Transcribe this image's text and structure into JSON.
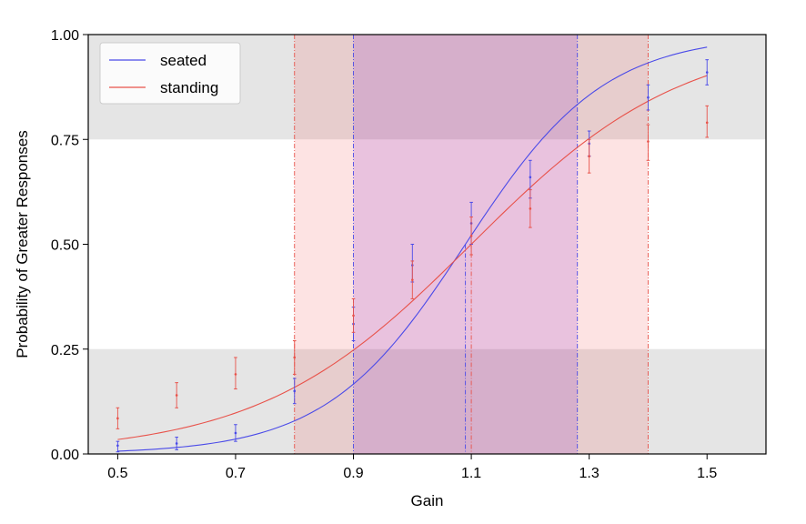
{
  "chart_data": {
    "type": "line",
    "xlabel": "Gain",
    "ylabel": "Probability of Greater Responses",
    "xlim": [
      0.45,
      1.6
    ],
    "ylim": [
      0.0,
      1.0
    ],
    "x_ticks": [
      "0.5",
      "0.7",
      "0.9",
      "1.1",
      "1.3",
      "1.5"
    ],
    "y_ticks": [
      "0.00",
      "0.25",
      "0.50",
      "0.75",
      "1.00"
    ],
    "legend_position": "top-left",
    "grey_bands": [
      [
        0.0,
        0.25
      ],
      [
        0.75,
        1.0
      ]
    ],
    "series": [
      {
        "name": "seated",
        "color": "#4a4ae8",
        "curve": {
          "pse": 1.09,
          "scale": 0.118
        },
        "points": [
          {
            "x": 0.5,
            "y": 0.02,
            "lo": 0.005,
            "hi": 0.03
          },
          {
            "x": 0.6,
            "y": 0.025,
            "lo": 0.01,
            "hi": 0.04
          },
          {
            "x": 0.7,
            "y": 0.05,
            "lo": 0.03,
            "hi": 0.07
          },
          {
            "x": 0.8,
            "y": 0.15,
            "lo": 0.12,
            "hi": 0.18
          },
          {
            "x": 0.9,
            "y": 0.31,
            "lo": 0.27,
            "hi": 0.35
          },
          {
            "x": 1.0,
            "y": 0.45,
            "lo": 0.41,
            "hi": 0.5
          },
          {
            "x": 1.1,
            "y": 0.55,
            "lo": 0.5,
            "hi": 0.6
          },
          {
            "x": 1.2,
            "y": 0.66,
            "lo": 0.61,
            "hi": 0.7
          },
          {
            "x": 1.3,
            "y": 0.74,
            "lo": 0.71,
            "hi": 0.77
          },
          {
            "x": 1.4,
            "y": 0.85,
            "lo": 0.82,
            "hi": 0.88
          },
          {
            "x": 1.5,
            "y": 0.91,
            "lo": 0.88,
            "hi": 0.94
          }
        ],
        "band": {
          "lower": 0.9,
          "pse": 1.09,
          "upper": 1.28
        }
      },
      {
        "name": "standing",
        "color": "#e8524a",
        "curve": {
          "pse": 1.1,
          "scale": 0.18
        },
        "points": [
          {
            "x": 0.5,
            "y": 0.085,
            "lo": 0.06,
            "hi": 0.11
          },
          {
            "x": 0.6,
            "y": 0.14,
            "lo": 0.11,
            "hi": 0.17
          },
          {
            "x": 0.7,
            "y": 0.19,
            "lo": 0.155,
            "hi": 0.23
          },
          {
            "x": 0.8,
            "y": 0.23,
            "lo": 0.19,
            "hi": 0.27
          },
          {
            "x": 0.9,
            "y": 0.33,
            "lo": 0.29,
            "hi": 0.37
          },
          {
            "x": 1.0,
            "y": 0.415,
            "lo": 0.37,
            "hi": 0.46
          },
          {
            "x": 1.1,
            "y": 0.52,
            "lo": 0.475,
            "hi": 0.565
          },
          {
            "x": 1.2,
            "y": 0.585,
            "lo": 0.54,
            "hi": 0.63
          },
          {
            "x": 1.3,
            "y": 0.71,
            "lo": 0.67,
            "hi": 0.75
          },
          {
            "x": 1.4,
            "y": 0.745,
            "lo": 0.7,
            "hi": 0.785
          },
          {
            "x": 1.5,
            "y": 0.79,
            "lo": 0.755,
            "hi": 0.83
          }
        ],
        "band": {
          "lower": 0.8,
          "pse": 1.1,
          "upper": 1.4
        }
      }
    ]
  }
}
